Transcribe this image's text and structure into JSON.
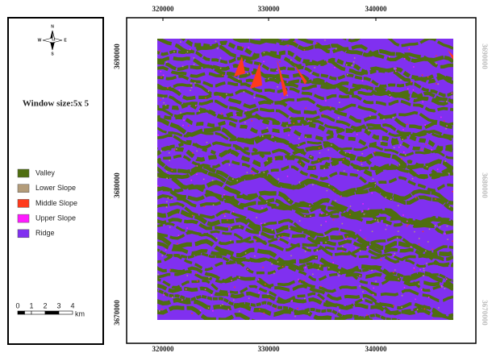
{
  "north_arrow": {
    "n": "N",
    "s": "S",
    "e": "E",
    "w": "W"
  },
  "panel_title": "Window size:5x 5",
  "legend": [
    {
      "label": "Valley",
      "color": "#4f6e10"
    },
    {
      "label": "Lower Slope",
      "color": "#b39c7a"
    },
    {
      "label": "Middle Slope",
      "color": "#ff3a1c"
    },
    {
      "label": "Upper Slope",
      "color": "#ff1aff"
    },
    {
      "label": "Ridge",
      "color": "#8030f0"
    }
  ],
  "scale_bar": {
    "labels": [
      0,
      1,
      2,
      3,
      4
    ],
    "unit": "km"
  },
  "map": {
    "x_ticks": [
      320000,
      330000,
      340000
    ],
    "y_ticks": [
      3690000,
      3680000,
      3670000
    ]
  }
}
